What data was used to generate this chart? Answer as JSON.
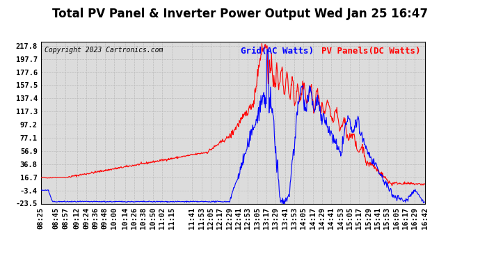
{
  "title": "Total PV Panel & Inverter Power Output Wed Jan 25 16:47",
  "copyright": "Copyright 2023 Cartronics.com",
  "legend_grid": "Grid(AC Watts)",
  "legend_pv": "PV Panels(DC Watts)",
  "ylabel_ticks": [
    217.8,
    197.7,
    177.6,
    157.5,
    137.4,
    117.3,
    97.2,
    77.1,
    56.9,
    36.8,
    16.7,
    -3.4,
    -23.5
  ],
  "ymin": -23.5,
  "ymax": 224.0,
  "grid_color": "#bbbbbb",
  "bg_color": "#ffffff",
  "plot_bg_color": "#dcdcdc",
  "blue_color": "#0000ff",
  "red_color": "#ff0000",
  "title_fontsize": 12,
  "tick_fontsize": 7.5,
  "copyright_fontsize": 7,
  "legend_fontsize": 9,
  "xtick_labels": [
    "08:25",
    "08:45",
    "08:57",
    "09:12",
    "09:24",
    "09:36",
    "09:48",
    "10:00",
    "10:14",
    "10:26",
    "10:38",
    "10:50",
    "11:02",
    "11:15",
    "11:41",
    "11:53",
    "12:05",
    "12:17",
    "12:29",
    "12:41",
    "12:53",
    "13:05",
    "13:17",
    "13:29",
    "13:41",
    "13:53",
    "14:05",
    "14:17",
    "14:29",
    "14:41",
    "14:53",
    "15:05",
    "15:17",
    "15:29",
    "15:41",
    "15:53",
    "16:05",
    "16:17",
    "16:29",
    "16:42"
  ]
}
